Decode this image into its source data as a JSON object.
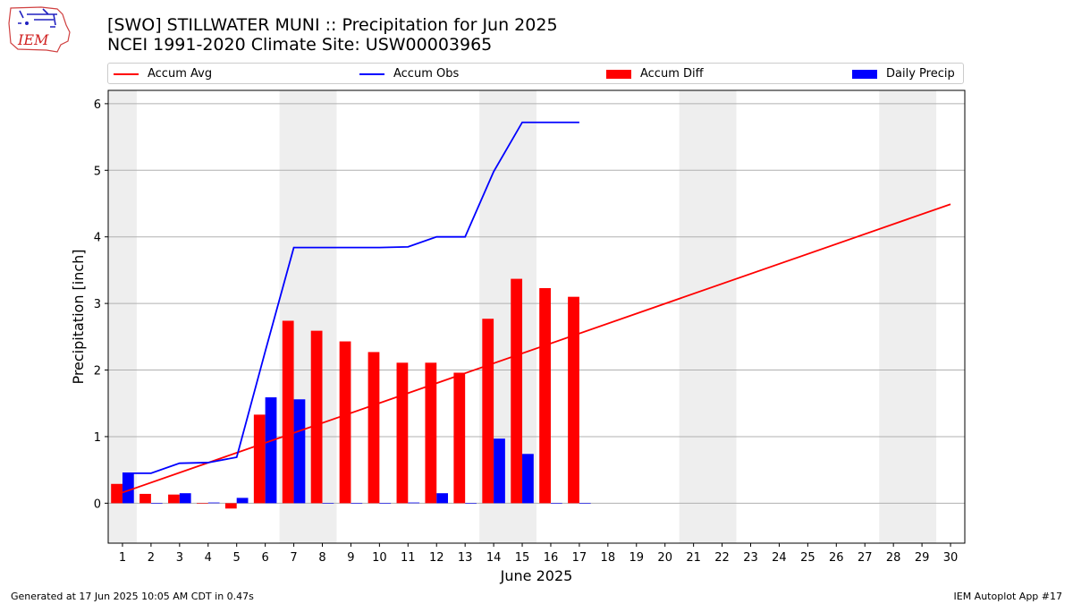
{
  "header": {
    "title_line1": "[SWO] STILLWATER MUNI :: Precipitation for Jun 2025",
    "title_line2": "NCEI 1991-2020 Climate Site: USW00003965",
    "logo_text": "IEM"
  },
  "legend": {
    "items": [
      {
        "label": "Accum Avg",
        "kind": "line",
        "color": "#ff0000"
      },
      {
        "label": "Accum Obs",
        "kind": "line",
        "color": "#0000ff"
      },
      {
        "label": "Accum Diff",
        "kind": "bar",
        "color": "#ff0000"
      },
      {
        "label": "Daily Precip",
        "kind": "bar",
        "color": "#0000ff"
      }
    ]
  },
  "footer": {
    "left": "Generated at 17 Jun 2025 10:05 AM CDT in 0.47s",
    "right": "IEM Autoplot App #17"
  },
  "chart_data": {
    "type": "bar",
    "xlabel": "June 2025",
    "ylabel": "Precipitation [inch]",
    "ylim": [
      -0.6,
      6.2
    ],
    "xlim": [
      0.5,
      30.5
    ],
    "grid": "horizontal",
    "yticks": [
      0,
      1,
      2,
      3,
      4,
      5,
      6
    ],
    "xticks": [
      "1",
      "2",
      "3",
      "4",
      "5",
      "6",
      "7",
      "8",
      "9",
      "10",
      "11",
      "12",
      "13",
      "14",
      "15",
      "16",
      "17",
      "18",
      "19",
      "20",
      "21",
      "22",
      "23",
      "24",
      "25",
      "26",
      "27",
      "28",
      "29",
      "30"
    ],
    "weekend_shading": [
      [
        0.5,
        1.5
      ],
      [
        6.5,
        8.5
      ],
      [
        13.5,
        15.5
      ],
      [
        20.5,
        22.5
      ],
      [
        27.5,
        29.5
      ]
    ],
    "series": [
      {
        "name": "Accum Avg",
        "kind": "line",
        "color": "#ff0000",
        "x": [
          1,
          30
        ],
        "values": [
          0.16,
          4.49
        ]
      },
      {
        "name": "Accum Obs",
        "kind": "line",
        "color": "#0000ff",
        "x": [
          1,
          2,
          3,
          4,
          5,
          6,
          7,
          8,
          9,
          10,
          11,
          12,
          13,
          14,
          15,
          16,
          17
        ],
        "values": [
          0.45,
          0.45,
          0.6,
          0.61,
          0.69,
          2.28,
          3.84,
          3.84,
          3.84,
          3.84,
          3.85,
          4.0,
          4.0,
          4.98,
          5.72,
          5.72,
          5.72
        ]
      },
      {
        "name": "Accum Diff",
        "kind": "bar",
        "color": "#ff0000",
        "x": [
          1,
          2,
          3,
          4,
          5,
          6,
          7,
          8,
          9,
          10,
          11,
          12,
          13,
          14,
          15,
          16,
          17
        ],
        "values": [
          0.29,
          0.14,
          0.13,
          0.0,
          -0.08,
          1.33,
          2.74,
          2.59,
          2.43,
          2.27,
          2.11,
          2.11,
          1.96,
          2.77,
          3.37,
          3.23,
          3.1
        ]
      },
      {
        "name": "Daily Precip",
        "kind": "bar",
        "color": "#0000ff",
        "x": [
          1,
          2,
          3,
          4,
          5,
          6,
          7,
          8,
          9,
          10,
          11,
          12,
          13,
          14,
          15,
          16,
          17
        ],
        "values": [
          0.45,
          0.0,
          0.15,
          0.01,
          0.08,
          1.59,
          1.56,
          0.0,
          0.0,
          0.0,
          0.01,
          0.15,
          0.0,
          0.97,
          0.74,
          0.0,
          0.0
        ]
      }
    ]
  }
}
